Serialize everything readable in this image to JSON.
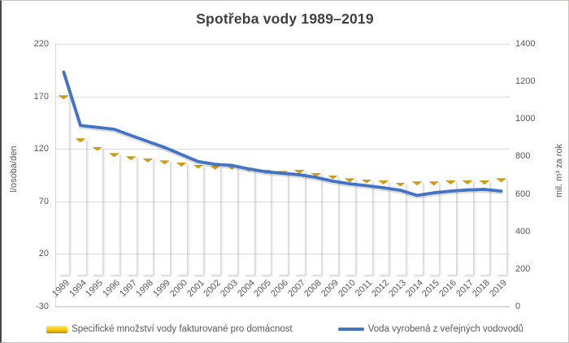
{
  "chart": {
    "title": "Spotřeba vody 1989–2019",
    "left_axis": {
      "title": "l/osoba/den",
      "ticks": [
        220,
        170,
        120,
        70,
        20,
        -30
      ]
    },
    "right_axis": {
      "title": "mil. m³ za rok",
      "ticks": [
        1400,
        1200,
        1000,
        800,
        600,
        400,
        200,
        0
      ]
    },
    "legend": [
      {
        "label": "Specifické množství vody fakturované pro domácnost",
        "swatch": "bar",
        "color": "#FFC000"
      },
      {
        "label": "Voda vyrobená z veřejných vodovodů",
        "swatch": "line",
        "color": "#4472C4"
      }
    ]
  },
  "chart_data": {
    "type": "bar",
    "title": "Spotřeba vody 1989–2019",
    "categories": [
      "1989",
      "1994",
      "1995",
      "1996",
      "1997",
      "1998",
      "1999",
      "2000",
      "2001",
      "2002",
      "2003",
      "2004",
      "2005",
      "2006",
      "2007",
      "2008",
      "2009",
      "2010",
      "2011",
      "2012",
      "2013",
      "2014",
      "2015",
      "2016",
      "2017",
      "2018",
      "2019"
    ],
    "series": [
      {
        "name": "Specifické množství vody fakturované pro domácnost",
        "type": "bar",
        "axis": "left",
        "unit": "l/osoba/den",
        "color": "#FFC000",
        "values": [
          171,
          130,
          122,
          116,
          113,
          111,
          109,
          107,
          105,
          104,
          104,
          102,
          100,
          99,
          100,
          97,
          95,
          92,
          91,
          90,
          88,
          89,
          89,
          90,
          90,
          90,
          92
        ]
      },
      {
        "name": "Voda vyrobená z veřejných vodovodů",
        "type": "line",
        "axis": "right",
        "unit": "mil. m³ za rok",
        "color": "#4472C4",
        "values": [
          1250,
          965,
          955,
          945,
          912,
          880,
          848,
          810,
          772,
          758,
          752,
          733,
          718,
          710,
          702,
          688,
          668,
          654,
          644,
          633,
          620,
          592,
          606,
          615,
          621,
          624,
          615
        ]
      }
    ],
    "xlabel": "",
    "ylabel_left": "l/osoba/den",
    "ylabel_right": "mil. m³ za rok",
    "left_ylim": [
      -30,
      220
    ],
    "right_ylim": [
      0,
      1400
    ],
    "grid": true,
    "legend_position": "bottom"
  }
}
